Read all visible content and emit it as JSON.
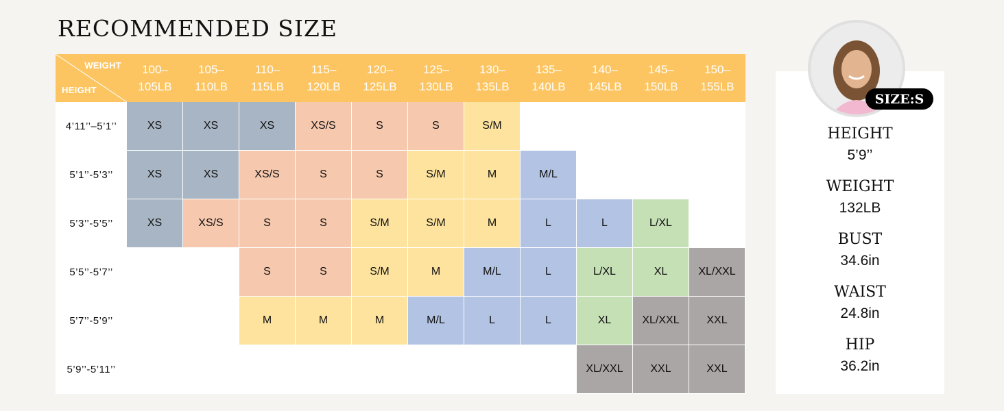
{
  "title": "RECOMMENDED SIZE",
  "colors": {
    "XS": "#a8b5c4",
    "XS/S": "#f6c9ae",
    "S": "#f6c9ae",
    "S/M": "#fde39e",
    "M": "#fde39e",
    "M/L": "#b3c3e3",
    "L": "#b3c3e3",
    "L/XL": "#c6e0b6",
    "XL": "#c6e0b6",
    "XL/XXL": "#aaa6a5",
    "XXL": "#aaa6a5",
    "header": "#fcc562"
  },
  "table": {
    "corner_weight": "WEIGHT",
    "corner_height": "HEIGHT",
    "weights": [
      [
        "100–",
        "105LB"
      ],
      [
        "105–",
        "110LB"
      ],
      [
        "110–",
        "115LB"
      ],
      [
        "115–",
        "120LB"
      ],
      [
        "120–",
        "125LB"
      ],
      [
        "125–",
        "130LB"
      ],
      [
        "130–",
        "135LB"
      ],
      [
        "135–",
        "140LB"
      ],
      [
        "140–",
        "145LB"
      ],
      [
        "145–",
        "150LB"
      ],
      [
        "150–",
        "155LB"
      ]
    ],
    "rows": [
      {
        "height": "4’11’’–5’1’’",
        "sizes": [
          "XS",
          "XS",
          "XS",
          "XS/S",
          "S",
          "S",
          "S/M",
          "",
          "",
          "",
          ""
        ]
      },
      {
        "height": "5’1’’-5’3’’",
        "sizes": [
          "XS",
          "XS",
          "XS/S",
          "S",
          "S",
          "S/M",
          "M",
          "M/L",
          "",
          "",
          ""
        ]
      },
      {
        "height": "5’3’’-5’5’’",
        "sizes": [
          "XS",
          "XS/S",
          "S",
          "S",
          "S/M",
          "S/M",
          "M",
          "L",
          "L",
          "L/XL",
          ""
        ]
      },
      {
        "height": "5’5’’-5’7’’",
        "sizes": [
          "",
          "",
          "S",
          "S",
          "S/M",
          "M",
          "M/L",
          "L",
          "L/XL",
          "XL",
          "XL/XXL"
        ]
      },
      {
        "height": "5’7’’-5’9’’",
        "sizes": [
          "",
          "",
          "M",
          "M",
          "M",
          "M/L",
          "L",
          "L",
          "XL",
          "XL/XXL",
          "XXL"
        ]
      },
      {
        "height": "5’9’’-5’11’’",
        "sizes": [
          "",
          "",
          "",
          "",
          "",
          "",
          "",
          "",
          "XL/XXL",
          "XXL",
          "XXL"
        ]
      }
    ]
  },
  "model": {
    "badge": "SIZE:S",
    "measurements": [
      {
        "label": "HEIGHT",
        "value": "5’9’’"
      },
      {
        "label": "WEIGHT",
        "value": "132LB"
      },
      {
        "label": "BUST",
        "value": "34.6in"
      },
      {
        "label": "WAIST",
        "value": "24.8in"
      },
      {
        "label": "HIP",
        "value": "36.2in"
      }
    ]
  }
}
